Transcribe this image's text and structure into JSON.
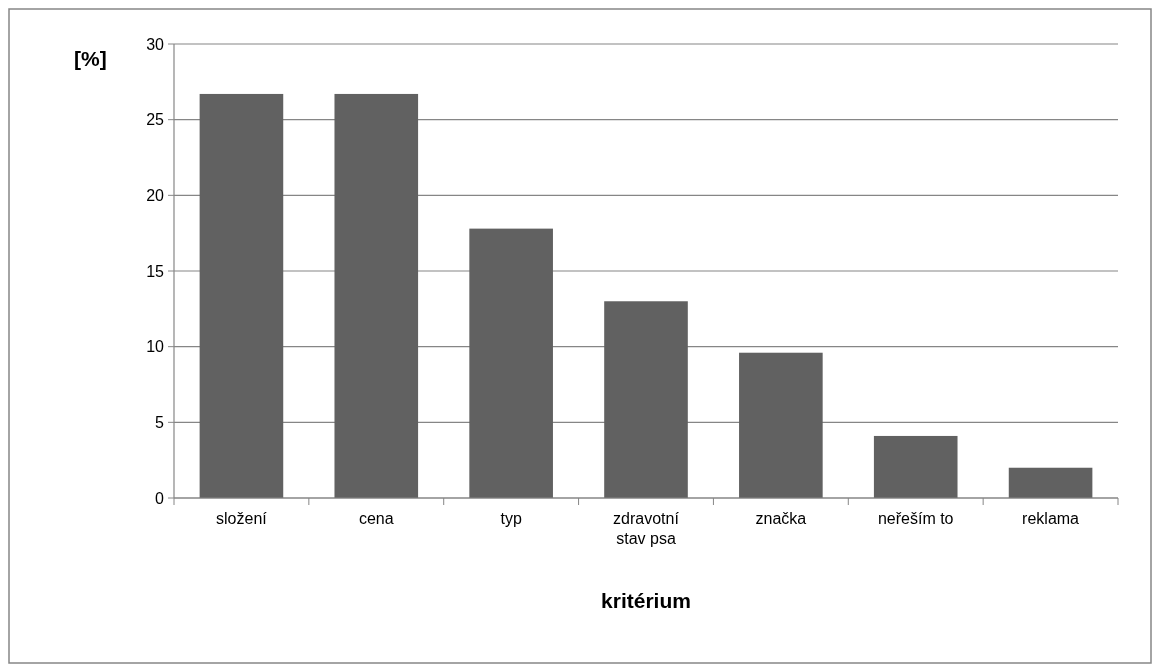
{
  "chart_data": {
    "type": "bar",
    "xlabel": "kritérium",
    "ylabel": "[%]",
    "categories": [
      "složení",
      "cena",
      "typ",
      "zdravotní stav psa",
      "značka",
      "neřeším to",
      "reklama"
    ],
    "values": [
      26.7,
      26.7,
      17.8,
      13.0,
      9.6,
      4.1,
      2.0
    ],
    "color": "#616161",
    "ylim": [
      0,
      30
    ],
    "yticks": [
      0,
      5,
      10,
      15,
      20,
      25,
      30
    ],
    "grid": "y"
  }
}
